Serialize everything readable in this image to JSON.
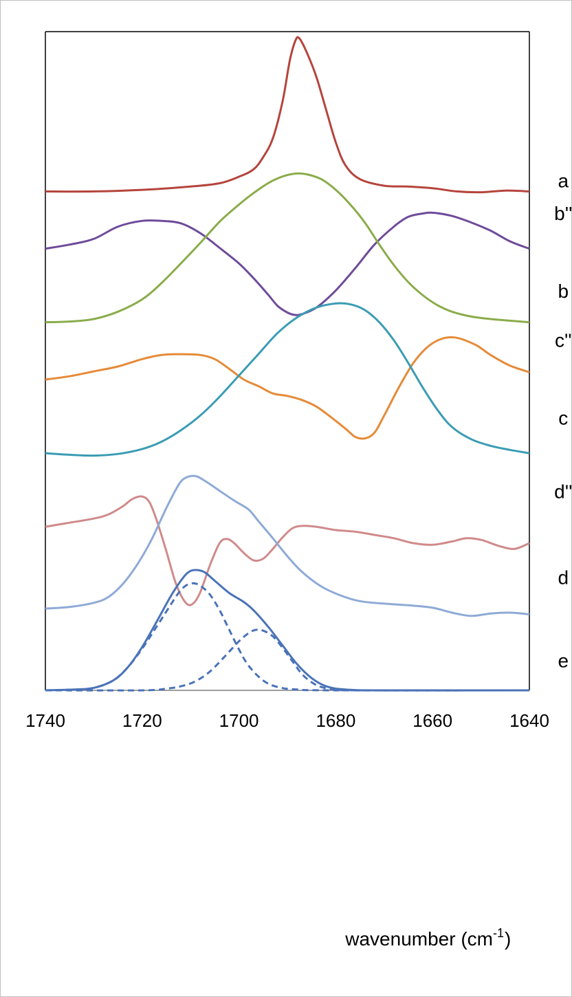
{
  "chart_data": {
    "type": "line",
    "title": "",
    "xlabel": "wavenumber (cm",
    "xlabel_sup": "-1",
    "xlabel_end": ")",
    "ylabel": "",
    "xlim": [
      1740,
      1640
    ],
    "x_reversed": true,
    "x_ticks": [
      "1740",
      "1720",
      "1700",
      "1680",
      "1660",
      "1640"
    ],
    "grid": false,
    "legend": "none",
    "series": [
      {
        "name": "a",
        "color": "#b5443c",
        "dashed": false,
        "label_x": 1633,
        "label_y": 0.945,
        "points": [
          [
            1740,
            0.94
          ],
          [
            1730,
            0.94
          ],
          [
            1720,
            0.942
          ],
          [
            1710,
            0.946
          ],
          [
            1704,
            0.95
          ],
          [
            1700,
            0.958
          ],
          [
            1697,
            0.967
          ],
          [
            1695,
            0.982
          ],
          [
            1693,
            1.005
          ],
          [
            1691,
            1.05
          ],
          [
            1689.5,
            1.1
          ],
          [
            1688.3,
            1.125
          ],
          [
            1687.5,
            1.127
          ],
          [
            1686,
            1.11
          ],
          [
            1684,
            1.08
          ],
          [
            1682,
            1.04
          ],
          [
            1680,
            1.0
          ],
          [
            1678,
            0.972
          ],
          [
            1675,
            0.955
          ],
          [
            1670,
            0.947
          ],
          [
            1665,
            0.946
          ],
          [
            1660,
            0.944
          ],
          [
            1655,
            0.94
          ],
          [
            1650,
            0.939
          ],
          [
            1645,
            0.941
          ],
          [
            1640,
            0.94
          ]
        ]
      },
      {
        "name": "b''",
        "color": "#6e4b9a",
        "dashed": false,
        "label_x": 1633,
        "label_y": 0.905,
        "points": [
          [
            1740,
            0.87
          ],
          [
            1735,
            0.875
          ],
          [
            1730,
            0.882
          ],
          [
            1725,
            0.897
          ],
          [
            1720,
            0.904
          ],
          [
            1716,
            0.904
          ],
          [
            1712,
            0.901
          ],
          [
            1708,
            0.889
          ],
          [
            1704,
            0.871
          ],
          [
            1700,
            0.852
          ],
          [
            1697,
            0.834
          ],
          [
            1694,
            0.814
          ],
          [
            1692,
            0.8
          ],
          [
            1690,
            0.792
          ],
          [
            1688.5,
            0.789
          ],
          [
            1687,
            0.79
          ],
          [
            1684,
            0.798
          ],
          [
            1680,
            0.819
          ],
          [
            1676,
            0.846
          ],
          [
            1672,
            0.875
          ],
          [
            1668,
            0.897
          ],
          [
            1665,
            0.909
          ],
          [
            1662,
            0.913
          ],
          [
            1660,
            0.914
          ],
          [
            1656,
            0.91
          ],
          [
            1652,
            0.902
          ],
          [
            1648,
            0.892
          ],
          [
            1644,
            0.879
          ],
          [
            1640,
            0.87
          ]
        ]
      },
      {
        "name": "b",
        "color": "#8aac4a",
        "dashed": false,
        "label_x": 1633,
        "label_y": 0.81,
        "points": [
          [
            1740,
            0.78
          ],
          [
            1735,
            0.781
          ],
          [
            1730,
            0.784
          ],
          [
            1725,
            0.793
          ],
          [
            1720,
            0.808
          ],
          [
            1716,
            0.828
          ],
          [
            1712,
            0.852
          ],
          [
            1708,
            0.877
          ],
          [
            1704,
            0.903
          ],
          [
            1700,
            0.924
          ],
          [
            1697,
            0.938
          ],
          [
            1694,
            0.95
          ],
          [
            1692,
            0.956
          ],
          [
            1690,
            0.96
          ],
          [
            1688,
            0.962
          ],
          [
            1686,
            0.961
          ],
          [
            1683,
            0.955
          ],
          [
            1680,
            0.942
          ],
          [
            1677,
            0.924
          ],
          [
            1674,
            0.902
          ],
          [
            1671,
            0.875
          ],
          [
            1668,
            0.85
          ],
          [
            1665,
            0.829
          ],
          [
            1662,
            0.813
          ],
          [
            1659,
            0.801
          ],
          [
            1656,
            0.793
          ],
          [
            1652,
            0.787
          ],
          [
            1648,
            0.784
          ],
          [
            1644,
            0.782
          ],
          [
            1640,
            0.78
          ]
        ]
      },
      {
        "name": "c''",
        "color": "#e58a38",
        "dashed": false,
        "label_x": 1633,
        "label_y": 0.75,
        "points": [
          [
            1740,
            0.71
          ],
          [
            1735,
            0.714
          ],
          [
            1730,
            0.72
          ],
          [
            1725,
            0.726
          ],
          [
            1720,
            0.735
          ],
          [
            1716,
            0.74
          ],
          [
            1712,
            0.741
          ],
          [
            1708,
            0.74
          ],
          [
            1705,
            0.735
          ],
          [
            1702,
            0.723
          ],
          [
            1699,
            0.71
          ],
          [
            1696,
            0.702
          ],
          [
            1693,
            0.693
          ],
          [
            1690,
            0.69
          ],
          [
            1687,
            0.685
          ],
          [
            1684,
            0.677
          ],
          [
            1681,
            0.664
          ],
          [
            1678,
            0.65
          ],
          [
            1676,
            0.64
          ],
          [
            1674,
            0.638
          ],
          [
            1672,
            0.645
          ],
          [
            1670,
            0.666
          ],
          [
            1667,
            0.7
          ],
          [
            1664,
            0.73
          ],
          [
            1661,
            0.75
          ],
          [
            1658,
            0.76
          ],
          [
            1655,
            0.761
          ],
          [
            1651,
            0.752
          ],
          [
            1648,
            0.74
          ],
          [
            1644,
            0.727
          ],
          [
            1640,
            0.719
          ]
        ]
      },
      {
        "name": "c",
        "color": "#3a9cb3",
        "dashed": false,
        "label_x": 1633,
        "label_y": 0.655,
        "points": [
          [
            1740,
            0.62
          ],
          [
            1735,
            0.618
          ],
          [
            1730,
            0.617
          ],
          [
            1725,
            0.619
          ],
          [
            1720,
            0.625
          ],
          [
            1716,
            0.634
          ],
          [
            1712,
            0.648
          ],
          [
            1708,
            0.666
          ],
          [
            1704,
            0.689
          ],
          [
            1700,
            0.715
          ],
          [
            1696,
            0.741
          ],
          [
            1692,
            0.767
          ],
          [
            1688,
            0.786
          ],
          [
            1684,
            0.798
          ],
          [
            1680,
            0.803
          ],
          [
            1677,
            0.802
          ],
          [
            1674,
            0.795
          ],
          [
            1671,
            0.78
          ],
          [
            1668,
            0.758
          ],
          [
            1665,
            0.73
          ],
          [
            1662,
            0.7
          ],
          [
            1659,
            0.673
          ],
          [
            1656,
            0.652
          ],
          [
            1652,
            0.637
          ],
          [
            1648,
            0.629
          ],
          [
            1644,
            0.624
          ],
          [
            1640,
            0.62
          ]
        ]
      },
      {
        "name": "d''",
        "color": "#d08a8a",
        "dashed": false,
        "label_x": 1633,
        "label_y": 0.565,
        "points": [
          [
            1740,
            0.53
          ],
          [
            1735,
            0.535
          ],
          [
            1730,
            0.54
          ],
          [
            1727,
            0.545
          ],
          [
            1724,
            0.555
          ],
          [
            1722,
            0.564
          ],
          [
            1720,
            0.567
          ],
          [
            1718.5,
            0.56
          ],
          [
            1717,
            0.538
          ],
          [
            1715,
            0.5
          ],
          [
            1713,
            0.46
          ],
          [
            1711,
            0.437
          ],
          [
            1709.5,
            0.436
          ],
          [
            1708,
            0.45
          ],
          [
            1706,
            0.483
          ],
          [
            1704,
            0.51
          ],
          [
            1702.5,
            0.515
          ],
          [
            1701,
            0.51
          ],
          [
            1699,
            0.498
          ],
          [
            1697,
            0.489
          ],
          [
            1695,
            0.491
          ],
          [
            1693,
            0.503
          ],
          [
            1691,
            0.517
          ],
          [
            1689,
            0.528
          ],
          [
            1687,
            0.531
          ],
          [
            1684,
            0.53
          ],
          [
            1680,
            0.526
          ],
          [
            1676,
            0.524
          ],
          [
            1672,
            0.52
          ],
          [
            1668,
            0.516
          ],
          [
            1664,
            0.51
          ],
          [
            1660,
            0.508
          ],
          [
            1656,
            0.512
          ],
          [
            1653,
            0.516
          ],
          [
            1650,
            0.514
          ],
          [
            1646,
            0.506
          ],
          [
            1643,
            0.503
          ],
          [
            1640,
            0.51
          ]
        ]
      },
      {
        "name": "d",
        "color": "#8eaad6",
        "dashed": false,
        "label_x": 1633,
        "label_y": 0.46,
        "points": [
          [
            1740,
            0.43
          ],
          [
            1735,
            0.432
          ],
          [
            1730,
            0.437
          ],
          [
            1727,
            0.444
          ],
          [
            1724,
            0.46
          ],
          [
            1721,
            0.484
          ],
          [
            1718,
            0.515
          ],
          [
            1715,
            0.553
          ],
          [
            1712.5,
            0.581
          ],
          [
            1711,
            0.59
          ],
          [
            1709,
            0.592
          ],
          [
            1707,
            0.586
          ],
          [
            1704,
            0.574
          ],
          [
            1701,
            0.562
          ],
          [
            1698,
            0.551
          ],
          [
            1696,
            0.537
          ],
          [
            1693,
            0.516
          ],
          [
            1690,
            0.494
          ],
          [
            1687,
            0.475
          ],
          [
            1683,
            0.457
          ],
          [
            1679,
            0.446
          ],
          [
            1675,
            0.439
          ],
          [
            1670,
            0.436
          ],
          [
            1665,
            0.434
          ],
          [
            1660,
            0.431
          ],
          [
            1656,
            0.425
          ],
          [
            1652,
            0.421
          ],
          [
            1648,
            0.424
          ],
          [
            1644,
            0.425
          ],
          [
            1640,
            0.423
          ]
        ]
      },
      {
        "name": "e",
        "color": "#4a73b8",
        "dashed": false,
        "label_x": 1633,
        "label_y": 0.358,
        "points": [
          [
            1740,
            0.33
          ],
          [
            1734,
            0.331
          ],
          [
            1730,
            0.333
          ],
          [
            1726,
            0.342
          ],
          [
            1723,
            0.358
          ],
          [
            1720,
            0.383
          ],
          [
            1717,
            0.414
          ],
          [
            1714,
            0.446
          ],
          [
            1711.5,
            0.468
          ],
          [
            1710,
            0.476
          ],
          [
            1708.5,
            0.477
          ],
          [
            1707,
            0.474
          ],
          [
            1705,
            0.464
          ],
          [
            1702,
            0.449
          ],
          [
            1699,
            0.438
          ],
          [
            1697,
            0.428
          ],
          [
            1694,
            0.408
          ],
          [
            1691,
            0.385
          ],
          [
            1688,
            0.362
          ],
          [
            1685,
            0.345
          ],
          [
            1682,
            0.335
          ],
          [
            1678,
            0.331
          ],
          [
            1670,
            0.33
          ],
          [
            1640,
            0.33
          ]
        ]
      },
      {
        "name": "",
        "color": "#4a73b8",
        "dashed": true,
        "label_x": null,
        "label_y": null,
        "points": [
          [
            1740,
            0.33
          ],
          [
            1734,
            0.331
          ],
          [
            1730,
            0.333
          ],
          [
            1726,
            0.342
          ],
          [
            1723,
            0.358
          ],
          [
            1720,
            0.381
          ],
          [
            1717,
            0.408
          ],
          [
            1714.5,
            0.431
          ],
          [
            1712.5,
            0.449
          ],
          [
            1711,
            0.458
          ],
          [
            1709.5,
            0.461
          ],
          [
            1708,
            0.458
          ],
          [
            1706,
            0.447
          ],
          [
            1704,
            0.428
          ],
          [
            1702,
            0.404
          ],
          [
            1700,
            0.38
          ],
          [
            1698,
            0.36
          ],
          [
            1695,
            0.342
          ],
          [
            1692,
            0.334
          ],
          [
            1688,
            0.331
          ],
          [
            1680,
            0.33
          ],
          [
            1640,
            0.33
          ]
        ]
      },
      {
        "name": "",
        "color": "#4a73b8",
        "dashed": true,
        "label_x": null,
        "label_y": null,
        "points": [
          [
            1740,
            0.33
          ],
          [
            1720,
            0.33
          ],
          [
            1715,
            0.332
          ],
          [
            1712,
            0.335
          ],
          [
            1709,
            0.341
          ],
          [
            1706,
            0.353
          ],
          [
            1703,
            0.371
          ],
          [
            1700,
            0.39
          ],
          [
            1698,
            0.4
          ],
          [
            1696.5,
            0.404
          ],
          [
            1695,
            0.403
          ],
          [
            1693,
            0.396
          ],
          [
            1691,
            0.382
          ],
          [
            1689,
            0.366
          ],
          [
            1687,
            0.35
          ],
          [
            1685,
            0.34
          ],
          [
            1683,
            0.334
          ],
          [
            1680,
            0.331
          ],
          [
            1675,
            0.33
          ],
          [
            1640,
            0.33
          ]
        ]
      }
    ]
  }
}
